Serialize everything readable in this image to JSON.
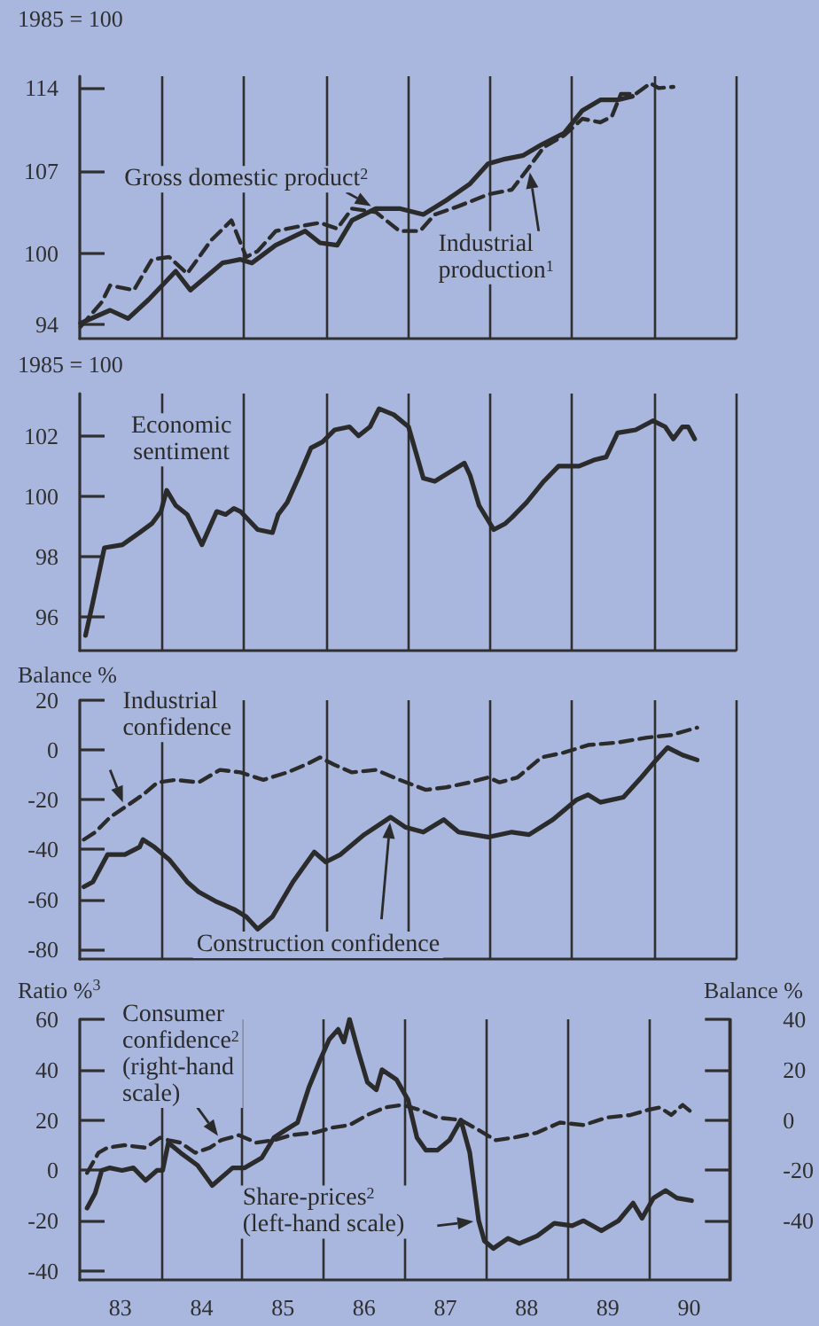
{
  "chart_data": [
    {
      "type": "line",
      "ylabel": "1985 = 100",
      "xlim": [
        82.5,
        90.5
      ],
      "ylim": [
        92.8,
        115
      ],
      "yticks": [
        94,
        100,
        107,
        114
      ],
      "tick_labels": "y",
      "grid": "x",
      "marker": "none",
      "xticks": [
        {
          "value": 83.5,
          "label": null
        },
        {
          "value": 84.5,
          "label": null
        },
        {
          "value": 85.5,
          "label": null
        },
        {
          "value": 86.5,
          "label": null
        },
        {
          "value": 87.5,
          "label": null
        },
        {
          "value": 88.5,
          "label": null
        },
        {
          "value": 89.5,
          "label": null
        },
        {
          "value": 90.5,
          "label": null
        }
      ],
      "series": [
        {
          "name": "Gross domestic product$^{2}$",
          "color": "#2b2b2b",
          "line_style": "solid",
          "x": [
            82.51,
            82.87,
            83.09,
            83.34,
            83.67,
            83.85,
            84.24,
            84.46,
            84.6,
            84.89,
            85.25,
            85.43,
            85.64,
            85.82,
            86.11,
            86.4,
            86.69,
            86.97,
            87.26,
            87.48,
            87.69,
            87.91,
            88.13,
            88.41,
            88.63,
            88.85,
            89.06,
            89.24
          ],
          "values": [
            94.1,
            95.2,
            94.5,
            96.1,
            98.5,
            96.9,
            99.2,
            99.5,
            99.2,
            100.7,
            101.9,
            100.9,
            100.7,
            102.8,
            103.8,
            103.8,
            103.3,
            104.5,
            105.9,
            107.6,
            108.0,
            108.3,
            109.2,
            110.2,
            112.1,
            113.0,
            113.0,
            113.3
          ]
        },
        {
          "name": "Industrial\nproduction$^{1}$",
          "color": "#2b2b2b",
          "line_style": "dashed",
          "x": [
            82.51,
            82.77,
            82.87,
            83.16,
            83.38,
            83.59,
            83.81,
            84.1,
            84.35,
            84.53,
            84.67,
            84.89,
            85.18,
            85.43,
            85.64,
            85.82,
            86.11,
            86.4,
            86.65,
            86.83,
            87.12,
            87.48,
            87.77,
            87.98,
            88.16,
            88.41,
            88.63,
            88.85,
            88.99,
            89.1,
            89.28,
            89.46,
            89.56,
            89.74
          ],
          "values": [
            93.8,
            95.9,
            97.3,
            96.9,
            99.5,
            99.7,
            98.3,
            101.1,
            102.8,
            99.7,
            100.2,
            101.9,
            102.3,
            102.6,
            102.1,
            103.8,
            103.5,
            101.9,
            101.9,
            103.3,
            104.0,
            105.0,
            105.4,
            107.3,
            109.0,
            110.0,
            111.4,
            111.1,
            111.6,
            113.5,
            113.5,
            114.4,
            114.0,
            114.1
          ]
        }
      ]
    },
    {
      "type": "line",
      "ylabel": "1985 = 100",
      "xlim": [
        82.5,
        90.5
      ],
      "ylim": [
        94.9,
        103.4
      ],
      "yticks": [
        96,
        98,
        100,
        102
      ],
      "tick_labels": "y",
      "grid": "x",
      "marker": "none",
      "xticks": [
        {
          "value": 83.5,
          "label": null
        },
        {
          "value": 84.5,
          "label": null
        },
        {
          "value": 85.5,
          "label": null
        },
        {
          "value": 86.5,
          "label": null
        },
        {
          "value": 87.5,
          "label": null
        },
        {
          "value": 88.5,
          "label": null
        },
        {
          "value": 89.5,
          "label": null
        },
        {
          "value": 90.5,
          "label": null
        }
      ],
      "series": [
        {
          "name": "Economic\nsentiment",
          "color": "#2b2b2b",
          "line_style": "solid",
          "x": [
            82.57,
            82.66,
            82.8,
            83.02,
            83.23,
            83.38,
            83.49,
            83.56,
            83.67,
            83.81,
            83.99,
            84.17,
            84.28,
            84.38,
            84.46,
            84.67,
            84.85,
            84.92,
            85.03,
            85.18,
            85.32,
            85.46,
            85.61,
            85.79,
            85.9,
            86.04,
            86.15,
            86.33,
            86.51,
            86.69,
            86.83,
            87.19,
            87.26,
            87.37,
            87.55,
            87.69,
            87.77,
            87.95,
            88.16,
            88.34,
            88.59,
            88.77,
            88.92,
            89.06,
            89.28,
            89.49,
            89.64,
            89.74,
            89.85,
            89.92,
            90.0
          ],
          "values": [
            95.4,
            96.5,
            98.3,
            98.4,
            98.8,
            99.1,
            99.5,
            100.2,
            99.7,
            99.4,
            98.4,
            99.5,
            99.4,
            99.6,
            99.5,
            98.9,
            98.8,
            99.4,
            99.8,
            100.7,
            101.6,
            101.8,
            102.2,
            102.3,
            102.0,
            102.3,
            102.9,
            102.7,
            102.3,
            100.6,
            100.5,
            101.1,
            100.7,
            99.7,
            98.9,
            99.1,
            99.3,
            99.8,
            100.5,
            101.0,
            101.0,
            101.2,
            101.3,
            102.1,
            102.2,
            102.5,
            102.3,
            101.9,
            102.3,
            102.3,
            101.9
          ]
        }
      ]
    },
    {
      "type": "line",
      "ylabel": "Balance %",
      "xlim": [
        82.5,
        90.5
      ],
      "ylim": [
        -84,
        20
      ],
      "yticks": [
        20,
        0,
        -20,
        -40,
        -60,
        -80
      ],
      "tick_labels": "y",
      "grid": "x",
      "marker": "none",
      "xticks": [
        {
          "value": 83.5,
          "label": null
        },
        {
          "value": 84.5,
          "label": null
        },
        {
          "value": 85.5,
          "label": null
        },
        {
          "value": 86.5,
          "label": null
        },
        {
          "value": 87.5,
          "label": null
        },
        {
          "value": 88.5,
          "label": null
        },
        {
          "value": 89.5,
          "label": null
        },
        {
          "value": 90.5,
          "label": null
        }
      ],
      "series": [
        {
          "name": "Industrial\nconfidence",
          "color": "#2b2b2b",
          "line_style": "dashed",
          "x": [
            82.55,
            82.69,
            82.87,
            83.05,
            83.27,
            83.45,
            83.67,
            83.95,
            84.21,
            84.46,
            84.74,
            85.03,
            85.25,
            85.43,
            85.61,
            85.82,
            86.11,
            86.4,
            86.72,
            86.97,
            87.26,
            87.48,
            87.62,
            87.84,
            88.13,
            88.41,
            88.7,
            89.06,
            89.42,
            89.71,
            90.03
          ],
          "values": [
            -36,
            -33,
            -27,
            -23,
            -18,
            -13,
            -12,
            -13,
            -8,
            -9,
            -12,
            -9,
            -6,
            -3,
            -6,
            -9,
            -8,
            -12,
            -16,
            -15,
            -13,
            -11,
            -13,
            -11,
            -3,
            -1,
            2,
            3,
            5,
            6,
            9
          ]
        },
        {
          "name": "Construction confidence",
          "color": "#2b2b2b",
          "line_style": "solid",
          "x": [
            82.55,
            82.66,
            82.84,
            83.05,
            83.23,
            83.27,
            83.41,
            83.59,
            83.81,
            83.95,
            84.17,
            84.38,
            84.53,
            84.67,
            84.85,
            85.1,
            85.36,
            85.5,
            85.68,
            85.97,
            86.29,
            86.47,
            86.69,
            86.94,
            87.12,
            87.48,
            87.77,
            87.98,
            88.27,
            88.56,
            88.7,
            88.85,
            89.13,
            89.35,
            89.53,
            89.67,
            89.85,
            90.03
          ],
          "values": [
            -55,
            -53,
            -42,
            -42,
            -39,
            -36,
            -39,
            -44,
            -53,
            -57,
            -61,
            -64,
            -67,
            -72,
            -67,
            -53,
            -41,
            -45,
            -42,
            -34,
            -27,
            -31,
            -33,
            -28,
            -33,
            -35,
            -33,
            -34,
            -28,
            -20,
            -18,
            -21,
            -19,
            -11,
            -4,
            1,
            -2,
            -4
          ]
        }
      ]
    },
    {
      "type": "line",
      "ylabel": "Ratio %$^{3}$",
      "y2label": "Balance %",
      "xlim": [
        82.5,
        90.5
      ],
      "ylim": [
        -43.5,
        60
      ],
      "yticks": [
        60,
        40,
        20,
        0,
        -20,
        -40
      ],
      "y2lim": [
        -63.5,
        40
      ],
      "y2ticks": [
        40,
        20,
        0,
        -20,
        -40
      ],
      "grid": "x",
      "marker": "none",
      "xticks": [
        {
          "value": 83,
          "label": "83"
        },
        {
          "value": 83.5,
          "label": null
        },
        {
          "value": 84,
          "label": "84"
        },
        {
          "value": 84.5,
          "label": null
        },
        {
          "value": 85,
          "label": "85"
        },
        {
          "value": 85.5,
          "label": null
        },
        {
          "value": 86,
          "label": "86"
        },
        {
          "value": 86.5,
          "label": null
        },
        {
          "value": 87,
          "label": "87"
        },
        {
          "value": 87.5,
          "label": null
        },
        {
          "value": 88,
          "label": "88"
        },
        {
          "value": 88.5,
          "label": null
        },
        {
          "value": 89,
          "label": "89"
        },
        {
          "value": 89.5,
          "label": null
        },
        {
          "value": 90,
          "label": "90"
        },
        {
          "value": 90.5,
          "label": null
        }
      ],
      "series": [
        {
          "name": "Consumer\nconfidence$^{2}$\n(right-hand\nscale)",
          "color": "#2b2b2b",
          "line_style": "dashed",
          "axis": "y2",
          "x": [
            82.59,
            82.73,
            82.84,
            83.05,
            83.31,
            83.49,
            83.59,
            83.74,
            83.92,
            84.1,
            84.24,
            84.46,
            84.67,
            84.89,
            85.1,
            85.39,
            85.61,
            85.82,
            86.04,
            86.26,
            86.47,
            86.69,
            86.9,
            87.19,
            87.41,
            87.62,
            87.84,
            88.13,
            88.41,
            88.7,
            88.99,
            89.28,
            89.49,
            89.64,
            89.78,
            89.92,
            90.07
          ],
          "values": [
            -21,
            -13,
            -11,
            -10,
            -11,
            -7,
            -8,
            -9,
            -13,
            -11,
            -8,
            -6,
            -9,
            -8,
            -6,
            -5,
            -3,
            -2,
            2,
            5,
            6,
            4,
            1,
            0,
            -4,
            -8,
            -7,
            -5,
            -1,
            -2,
            1,
            2,
            4,
            5,
            2,
            6,
            2
          ]
        },
        {
          "name": "Share-prices$^{2}$\n(left-hand scale)",
          "color": "#2b2b2b",
          "line_style": "solid",
          "x": [
            82.59,
            82.69,
            82.77,
            82.87,
            83.02,
            83.16,
            83.31,
            83.45,
            83.52,
            83.59,
            83.74,
            83.95,
            84.13,
            84.38,
            84.53,
            84.74,
            84.89,
            85.03,
            85.18,
            85.32,
            85.46,
            85.57,
            85.68,
            85.75,
            85.82,
            85.93,
            86.04,
            86.15,
            86.22,
            86.4,
            86.54,
            86.65,
            86.76,
            86.9,
            87.05,
            87.19,
            87.3,
            87.41,
            87.48,
            87.59,
            87.77,
            87.91,
            88.13,
            88.34,
            88.56,
            88.7,
            88.92,
            89.13,
            89.31,
            89.42,
            89.56,
            89.71,
            89.85,
            90.03
          ],
          "values": [
            -15,
            -9,
            0,
            1,
            0,
            1,
            -4,
            0,
            0,
            11,
            7,
            2,
            -6,
            1,
            1,
            5,
            13,
            16,
            19,
            33,
            44,
            52,
            56,
            51,
            60,
            47,
            35,
            32,
            40,
            36,
            28,
            13,
            8,
            8,
            12,
            20,
            7,
            -20,
            -28,
            -31,
            -27,
            -29,
            -26,
            -21,
            -22,
            -20,
            -24,
            -20,
            -13,
            -19,
            -11,
            -8,
            -11,
            -12
          ]
        }
      ]
    }
  ]
}
